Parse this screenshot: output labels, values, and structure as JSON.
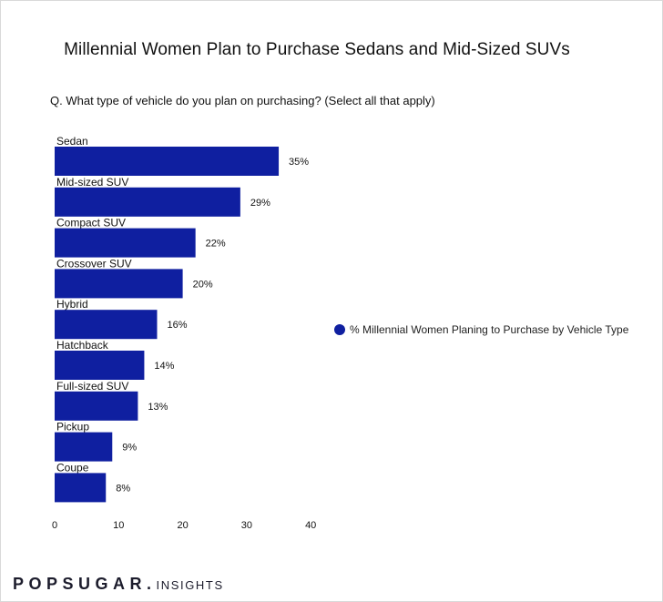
{
  "chart_data": {
    "type": "bar",
    "orientation": "horizontal",
    "title": "Millennial Women Plan to Purchase Sedans and Mid-Sized SUVs",
    "subtitle": "Q. What type of vehicle do you plan on purchasing? (Select all that apply)",
    "categories": [
      "Sedan",
      "Mid-sized SUV",
      "Compact SUV",
      "Crossover SUV",
      "Hybrid",
      "Hatchback",
      "Full-sized SUV",
      "Pickup",
      "Coupe"
    ],
    "series": [
      {
        "name": "% Millennial Women Planing to Purchase by Vehicle Type",
        "values": [
          35,
          29,
          22,
          20,
          16,
          14,
          13,
          9,
          8
        ],
        "data_labels": [
          "35%",
          "29%",
          "22%",
          "20%",
          "16%",
          "14%",
          "13%",
          "9%",
          "8%"
        ],
        "color": "#0f1fa0"
      }
    ],
    "xlim": [
      0,
      40
    ],
    "xticks": [
      "0",
      "10",
      "20",
      "30",
      "40"
    ],
    "grid": false,
    "legend_position": "right"
  },
  "branding": {
    "logo_main": "POPSUGAR.",
    "logo_sub": "INSIGHTS"
  }
}
